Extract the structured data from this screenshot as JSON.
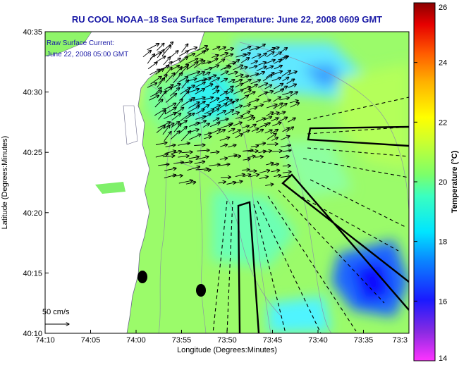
{
  "chart_data": {
    "type": "heatmap",
    "title": "RU COOL  NOAA–18  Sea Surface Temperature:  June 22, 2008 0609 GMT",
    "xlabel": "Longitude (Degrees:Minutes)",
    "ylabel": "Latitude (Degrees:Minutes)",
    "x_ticks": [
      "74:10",
      "74:05",
      "74:00",
      "73:55",
      "73:50",
      "73:45",
      "73:40",
      "73:35",
      "73:3"
    ],
    "y_ticks": [
      "40:35",
      "40:30",
      "40:25",
      "40:20",
      "40:15",
      "40:10"
    ],
    "xlim_minutes_west": [
      10,
      30
    ],
    "ylim_minutes_north": [
      10,
      35
    ],
    "colorbar": {
      "label": "Temperature (°C)",
      "range": [
        14,
        26
      ],
      "ticks": [
        "26",
        "24",
        "22",
        "20",
        "18",
        "16",
        "14"
      ]
    },
    "annotations": {
      "current_label": "Raw Surface Current:",
      "current_time": "June 22, 2008 05:00 GMT",
      "scale_label": "50 cm/s"
    },
    "current_field": {
      "units": "cm/s",
      "predominant_direction": "east-northeast",
      "region_lon_min_west": [
        16,
        27
      ],
      "region_lat_min_north": [
        23,
        34
      ]
    },
    "temperature_regions": [
      {
        "name": "nearshore-north",
        "value": 21.5
      },
      {
        "name": "offshore-background",
        "value": 19.5
      },
      {
        "name": "central-apex",
        "value": 18.0
      },
      {
        "name": "southeast-cold-pool",
        "value": 16.0
      },
      {
        "name": "east-cool-patch",
        "value": 17.5
      }
    ],
    "colors": {
      "title": "#1a1aa6",
      "land": "#ffffff",
      "arrows": "#000000"
    }
  }
}
